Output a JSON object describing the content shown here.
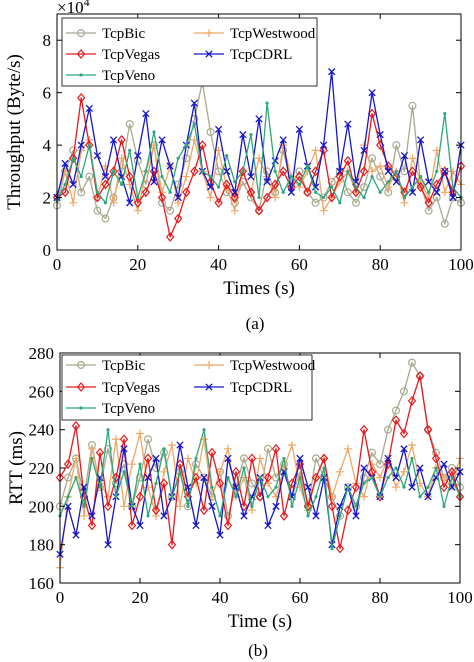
{
  "figure": {
    "captions": [
      "(a)",
      "(b)"
    ]
  },
  "chart_data": [
    {
      "type": "line",
      "title": "",
      "xlabel": "Times (s)",
      "ylabel": "Throughput (Byte/s)",
      "y_multiplier": "×10",
      "y_multiplier_exp": "4",
      "xlim": [
        0,
        100
      ],
      "ylim": [
        0,
        90000
      ],
      "xticks": [
        0,
        20,
        40,
        60,
        80,
        100
      ],
      "xtick_labels": [
        "0",
        "20",
        "40",
        "60",
        "80",
        "100"
      ],
      "yticks": [
        0,
        20000,
        40000,
        60000,
        80000
      ],
      "ytick_labels": [
        "0",
        "2",
        "4",
        "6",
        "8"
      ],
      "grid": false,
      "legend_position": "top-left",
      "legend_columns": 2,
      "x": [
        0,
        2,
        4,
        6,
        8,
        10,
        12,
        14,
        16,
        18,
        20,
        22,
        24,
        26,
        28,
        30,
        32,
        34,
        36,
        38,
        40,
        42,
        44,
        46,
        48,
        50,
        52,
        54,
        56,
        58,
        60,
        62,
        64,
        66,
        68,
        70,
        72,
        74,
        76,
        78,
        80,
        82,
        84,
        86,
        88,
        90,
        92,
        94,
        96,
        98,
        100
      ],
      "series": [
        {
          "name": "TcpBic",
          "color": "#a9a98f",
          "marker": "circle",
          "values": [
            17000,
            30000,
            38000,
            22000,
            28000,
            15000,
            12000,
            20000,
            30000,
            48000,
            34000,
            25000,
            40000,
            18000,
            15000,
            25000,
            35000,
            50000,
            64000,
            45000,
            30000,
            22000,
            18000,
            26000,
            20000,
            15000,
            30000,
            22000,
            38000,
            25000,
            30000,
            22000,
            18000,
            20000,
            26000,
            30000,
            22000,
            18000,
            24000,
            35000,
            28000,
            22000,
            40000,
            30000,
            55000,
            25000,
            15000,
            20000,
            10000,
            20000,
            18000
          ]
        },
        {
          "name": "TcpWestwood",
          "color": "#f0a868",
          "marker": "plus",
          "values": [
            21000,
            30000,
            18000,
            38000,
            42000,
            20000,
            32000,
            18000,
            35000,
            25000,
            15000,
            30000,
            40000,
            22000,
            32000,
            18000,
            28000,
            42000,
            30000,
            20000,
            38000,
            24000,
            15000,
            30000,
            22000,
            35000,
            28000,
            20000,
            40000,
            28000,
            24000,
            30000,
            38000,
            15000,
            20000,
            26000,
            30000,
            22000,
            40000,
            30000,
            32000,
            24000,
            30000,
            18000,
            35000,
            26000,
            20000,
            38000,
            22000,
            30000,
            25000
          ]
        },
        {
          "name": "TcpVegas",
          "color": "#e8191c",
          "marker": "diamond",
          "values": [
            20000,
            22000,
            35000,
            58000,
            40000,
            20000,
            25000,
            30000,
            42000,
            28000,
            18000,
            22000,
            30000,
            20000,
            5000,
            12000,
            22000,
            30000,
            40000,
            26000,
            18000,
            25000,
            20000,
            30000,
            22000,
            15000,
            20000,
            25000,
            30000,
            24000,
            28000,
            22000,
            30000,
            38000,
            20000,
            28000,
            34000,
            22000,
            30000,
            52000,
            40000,
            32000,
            28000,
            22000,
            30000,
            24000,
            18000,
            25000,
            30000,
            22000,
            32000
          ]
        },
        {
          "name": "TcpCDRL",
          "color": "#1717c8",
          "marker": "x",
          "values": [
            20000,
            33000,
            25000,
            40000,
            54000,
            36000,
            28000,
            42000,
            28000,
            18000,
            36000,
            52000,
            26000,
            42000,
            32000,
            20000,
            40000,
            56000,
            30000,
            24000,
            46000,
            30000,
            22000,
            44000,
            28000,
            50000,
            26000,
            34000,
            42000,
            22000,
            46000,
            32000,
            24000,
            40000,
            68000,
            30000,
            48000,
            26000,
            38000,
            60000,
            44000,
            30000,
            26000,
            36000,
            22000,
            42000,
            26000,
            22000,
            30000,
            20000,
            40000
          ]
        },
        {
          "name": "TcpVeno",
          "color": "#2ea87a",
          "marker": "dot",
          "values": [
            19000,
            25000,
            35000,
            28000,
            40000,
            22000,
            18000,
            30000,
            25000,
            38000,
            20000,
            30000,
            45000,
            28000,
            22000,
            35000,
            40000,
            48000,
            30000,
            28000,
            24000,
            36000,
            26000,
            30000,
            44000,
            20000,
            56000,
            30000,
            22000,
            28000,
            25000,
            32000,
            22000,
            20000,
            24000,
            18000,
            30000,
            24000,
            20000,
            28000,
            22000,
            26000,
            30000,
            20000,
            24000,
            28000,
            22000,
            30000,
            52000,
            24000,
            20000
          ]
        }
      ]
    },
    {
      "type": "line",
      "title": "",
      "xlabel": "Time (s)",
      "ylabel": "RTT (ms)",
      "xlim": [
        0,
        100
      ],
      "ylim": [
        160,
        280
      ],
      "xticks": [
        0,
        20,
        40,
        60,
        80,
        100
      ],
      "xtick_labels": [
        "0",
        "20",
        "40",
        "60",
        "80",
        "100"
      ],
      "yticks": [
        160,
        180,
        200,
        220,
        240,
        260,
        280
      ],
      "ytick_labels": [
        "160",
        "180",
        "200",
        "220",
        "240",
        "260",
        "280"
      ],
      "grid": false,
      "legend_position": "top-left",
      "legend_columns": 2,
      "x": [
        0,
        2,
        4,
        6,
        8,
        10,
        12,
        14,
        16,
        18,
        20,
        22,
        24,
        26,
        28,
        30,
        32,
        34,
        36,
        38,
        40,
        42,
        44,
        46,
        48,
        50,
        52,
        54,
        56,
        58,
        60,
        62,
        64,
        66,
        68,
        70,
        72,
        74,
        76,
        78,
        80,
        82,
        84,
        86,
        88,
        90,
        92,
        94,
        96,
        98,
        100
      ],
      "series": [
        {
          "name": "TcpBic",
          "color": "#a9a98f",
          "marker": "circle",
          "values": [
            200,
            215,
            225,
            205,
            232,
            210,
            230,
            212,
            222,
            200,
            215,
            235,
            220,
            228,
            205,
            218,
            200,
            222,
            215,
            205,
            218,
            195,
            210,
            225,
            212,
            205,
            230,
            215,
            222,
            205,
            218,
            200,
            225,
            215,
            205,
            195,
            210,
            200,
            215,
            228,
            222,
            240,
            250,
            260,
            275,
            268,
            240,
            228,
            215,
            220,
            210
          ]
        },
        {
          "name": "TcpWestwood",
          "color": "#f0a868",
          "marker": "plus",
          "values": [
            168,
            205,
            225,
            195,
            230,
            212,
            205,
            235,
            200,
            222,
            238,
            210,
            195,
            218,
            232,
            200,
            225,
            212,
            235,
            205,
            218,
            230,
            205,
            215,
            198,
            225,
            212,
            205,
            220,
            232,
            210,
            198,
            215,
            225,
            205,
            218,
            230,
            212,
            205,
            222,
            215,
            225,
            210,
            218,
            232,
            212,
            205,
            220,
            215,
            210,
            225
          ]
        },
        {
          "name": "TcpVegas",
          "color": "#e8191c",
          "marker": "diamond",
          "values": [
            215,
            222,
            242,
            205,
            190,
            228,
            200,
            215,
            235,
            190,
            205,
            225,
            198,
            212,
            180,
            222,
            205,
            215,
            198,
            228,
            212,
            190,
            218,
            200,
            225,
            205,
            215,
            230,
            195,
            212,
            222,
            200,
            215,
            225,
            200,
            178,
            198,
            210,
            240,
            218,
            205,
            222,
            245,
            238,
            255,
            268,
            240,
            225,
            210,
            218,
            205
          ]
        },
        {
          "name": "TcpCDRL",
          "color": "#1717c8",
          "marker": "x",
          "values": [
            175,
            200,
            185,
            210,
            195,
            215,
            180,
            205,
            230,
            200,
            190,
            215,
            225,
            195,
            205,
            232,
            210,
            190,
            215,
            200,
            185,
            225,
            210,
            195,
            205,
            215,
            190,
            200,
            218,
            205,
            225,
            210,
            195,
            215,
            180,
            200,
            210,
            195,
            220,
            215,
            205,
            225,
            215,
            230,
            210,
            220,
            205,
            215,
            222,
            210,
            218
          ]
        },
        {
          "name": "TcpVeno",
          "color": "#2ea87a",
          "marker": "dot",
          "values": [
            195,
            205,
            215,
            200,
            225,
            210,
            240,
            205,
            218,
            200,
            222,
            195,
            212,
            230,
            205,
            218,
            200,
            225,
            240,
            210,
            195,
            215,
            205,
            220,
            200,
            215,
            205,
            210,
            225,
            200,
            215,
            195,
            205,
            220,
            178,
            195,
            210,
            200,
            212,
            215,
            205,
            215,
            220,
            210,
            225,
            205,
            210,
            220,
            200,
            215,
            205
          ]
        }
      ]
    }
  ]
}
